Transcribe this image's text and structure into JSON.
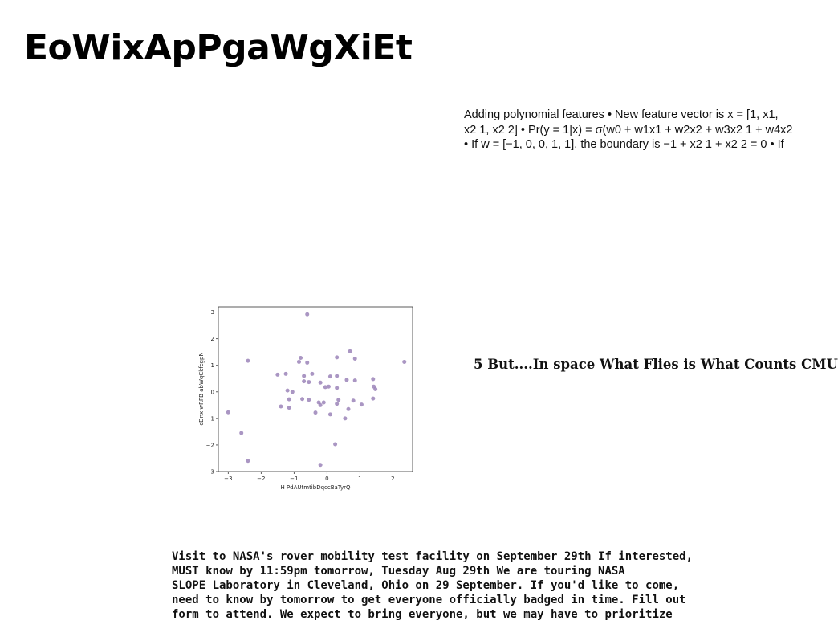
{
  "title": "EoWixApPgaWgXiEt",
  "snippet": {
    "lines": [
      "Adding polynomial features • New feature vector is x = [1, x1,",
      "x2 1, x2 2] • Pr(y = 1|x) = σ(w0 + w1x1 + w2x2 + w3x2 1 + w4x2",
      "• If w = [−1, 0, 0, 1, 1], the boundary is −1 + x2 1 + x2 2 = 0 • If"
    ]
  },
  "heading": "5 But....In space What Flies is What Counts CMU",
  "notice": {
    "lines": [
      "Visit to NASA's rover mobility test facility on September 29th If interested,",
      "MUST know by 11:59pm tomorrow, Tuesday Aug 29th We are touring NASA",
      "SLOPE Laboratory in Cleveland, Ohio on 29 September. If you'd like to come,",
      "need to know by tomorrow to get everyone officially badged in time. Fill out",
      "form to attend. We expect to bring everyone, but we may have to prioritize"
    ]
  },
  "chart_data": {
    "type": "scatter",
    "title": "",
    "xlabel": "H PdAUtmtibDqccBaTyrQ",
    "ylabel": "cDnx wRPB abWqCkfcgpN",
    "xlim": [
      -3.3,
      2.6
    ],
    "ylim": [
      -3.0,
      3.2
    ],
    "xticks": [
      -3,
      -2,
      -1,
      0,
      1,
      2
    ],
    "yticks": [
      -3,
      -2,
      -1,
      0,
      1,
      2,
      3
    ],
    "xtick_labels": [
      "−3",
      "−2",
      "−1",
      "0",
      "1",
      "2"
    ],
    "ytick_labels": [
      "−3",
      "−2",
      "−1",
      "0",
      "1",
      "2",
      "3"
    ],
    "grid": false,
    "point_color": "#9b84b8",
    "points": [
      {
        "x": -0.6,
        "y": 2.92
      },
      {
        "x": -2.4,
        "y": 1.17
      },
      {
        "x": -3.0,
        "y": -0.77
      },
      {
        "x": -2.6,
        "y": -1.55
      },
      {
        "x": -2.4,
        "y": -2.6
      },
      {
        "x": -0.2,
        "y": -2.75
      },
      {
        "x": 0.25,
        "y": -1.97
      },
      {
        "x": 2.35,
        "y": 1.13
      },
      {
        "x": 0.7,
        "y": 1.53
      },
      {
        "x": 0.3,
        "y": 1.3
      },
      {
        "x": 0.85,
        "y": 1.25
      },
      {
        "x": -0.8,
        "y": 1.28
      },
      {
        "x": -0.85,
        "y": 1.13
      },
      {
        "x": -0.6,
        "y": 1.1
      },
      {
        "x": -1.5,
        "y": 0.65
      },
      {
        "x": -1.25,
        "y": 0.68
      },
      {
        "x": -0.45,
        "y": 0.68
      },
      {
        "x": -0.7,
        "y": 0.6
      },
      {
        "x": -0.7,
        "y": 0.4
      },
      {
        "x": -0.55,
        "y": 0.37
      },
      {
        "x": -0.2,
        "y": 0.35
      },
      {
        "x": 0.1,
        "y": 0.58
      },
      {
        "x": 0.3,
        "y": 0.6
      },
      {
        "x": 0.6,
        "y": 0.45
      },
      {
        "x": 0.85,
        "y": 0.43
      },
      {
        "x": 1.4,
        "y": 0.48
      },
      {
        "x": 1.42,
        "y": 0.2
      },
      {
        "x": 1.47,
        "y": 0.1
      },
      {
        "x": -0.05,
        "y": 0.18
      },
      {
        "x": 0.05,
        "y": 0.2
      },
      {
        "x": 0.3,
        "y": 0.15
      },
      {
        "x": -1.2,
        "y": 0.05
      },
      {
        "x": -1.05,
        "y": 0.0
      },
      {
        "x": -1.15,
        "y": -0.28
      },
      {
        "x": -0.75,
        "y": -0.27
      },
      {
        "x": -0.55,
        "y": -0.3
      },
      {
        "x": -0.25,
        "y": -0.4
      },
      {
        "x": -0.1,
        "y": -0.4
      },
      {
        "x": 0.35,
        "y": -0.3
      },
      {
        "x": 0.8,
        "y": -0.33
      },
      {
        "x": 1.4,
        "y": -0.25
      },
      {
        "x": -0.2,
        "y": -0.5
      },
      {
        "x": 0.3,
        "y": -0.45
      },
      {
        "x": 1.05,
        "y": -0.48
      },
      {
        "x": -1.4,
        "y": -0.55
      },
      {
        "x": -1.15,
        "y": -0.6
      },
      {
        "x": 0.65,
        "y": -0.65
      },
      {
        "x": -0.35,
        "y": -0.78
      },
      {
        "x": 0.1,
        "y": -0.85
      },
      {
        "x": 0.55,
        "y": -1.0
      }
    ]
  }
}
